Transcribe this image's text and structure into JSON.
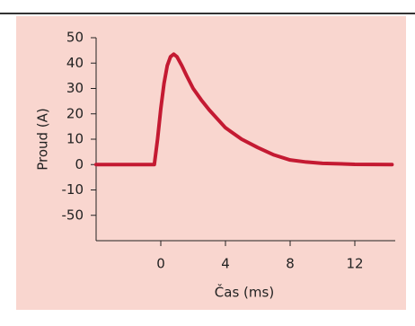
{
  "chart_data": {
    "type": "line",
    "x_label": "Čas (ms)",
    "y_label": "Proud (A)",
    "x": [
      -4,
      -0.4,
      -0.2,
      0,
      0.2,
      0.4,
      0.6,
      0.8,
      1.0,
      1.3,
      1.6,
      2.0,
      2.5,
      3,
      4,
      5,
      6,
      7,
      8,
      9,
      10,
      12,
      14.3
    ],
    "series": [
      {
        "color": "#c41a32",
        "values": [
          0,
          0,
          10,
          22,
          32,
          39,
          42.5,
          43.5,
          42.5,
          39,
          35,
          30,
          25.5,
          21.5,
          14.5,
          10,
          6.7,
          3.8,
          1.8,
          1,
          0.5,
          0.1,
          0
        ]
      }
    ],
    "xlim": [
      -4,
      14.5
    ],
    "xticks": [
      0,
      4,
      8,
      12
    ],
    "ylim": [
      -30,
      50
    ],
    "yticks": [
      50,
      40,
      30,
      20,
      10,
      0,
      -10,
      {
        "value": -20,
        "label": "-50"
      }
    ],
    "background": "#f9d6cf"
  }
}
